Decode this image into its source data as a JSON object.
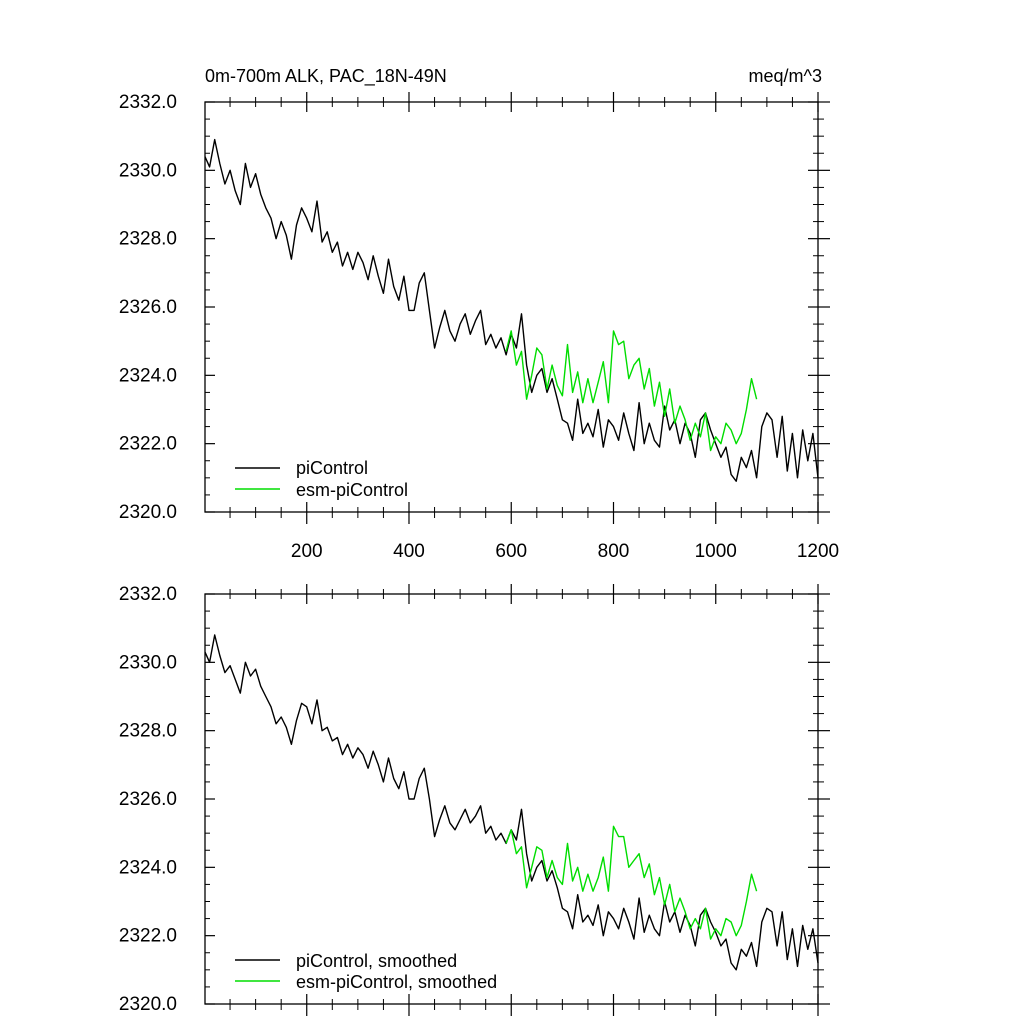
{
  "chart_data": [
    {
      "type": "line",
      "title": "0m-700m ALK, PAC_18N-49N",
      "units": "meq/m^3",
      "xlim": [
        1,
        1200
      ],
      "ylim": [
        2320.0,
        2332.0
      ],
      "x_ticks": [
        200,
        400,
        600,
        800,
        1000,
        1200
      ],
      "y_ticks": [
        "2320.0",
        "2322.0",
        "2324.0",
        "2326.0",
        "2328.0",
        "2330.0",
        "2332.0"
      ],
      "legend_position": "bottom-left",
      "series": [
        {
          "name": "piControl",
          "color": "#000000",
          "x": [
            1,
            10,
            20,
            30,
            40,
            50,
            60,
            70,
            80,
            90,
            100,
            110,
            120,
            130,
            140,
            150,
            160,
            170,
            180,
            190,
            200,
            210,
            220,
            230,
            240,
            250,
            260,
            270,
            280,
            290,
            300,
            310,
            320,
            330,
            340,
            350,
            360,
            370,
            380,
            390,
            400,
            410,
            420,
            430,
            440,
            450,
            460,
            470,
            480,
            490,
            500,
            510,
            520,
            530,
            540,
            550,
            560,
            570,
            580,
            590,
            600,
            610,
            620,
            630,
            640,
            650,
            660,
            670,
            680,
            690,
            700,
            710,
            720,
            730,
            740,
            750,
            760,
            770,
            780,
            790,
            800,
            810,
            820,
            830,
            840,
            850,
            860,
            870,
            880,
            890,
            900,
            910,
            920,
            930,
            940,
            950,
            960,
            970,
            980,
            990,
            1000,
            1010,
            1020,
            1030,
            1040,
            1050,
            1060,
            1070,
            1080,
            1090,
            1100,
            1110,
            1120,
            1130,
            1140,
            1150,
            1160,
            1170,
            1180,
            1190,
            1200
          ],
          "y": [
            2330.4,
            2330.1,
            2330.9,
            2330.2,
            2329.6,
            2330.0,
            2329.4,
            2329.0,
            2330.2,
            2329.5,
            2329.9,
            2329.3,
            2328.9,
            2328.6,
            2328.0,
            2328.5,
            2328.1,
            2327.4,
            2328.4,
            2328.9,
            2328.6,
            2328.2,
            2329.1,
            2327.9,
            2328.2,
            2327.6,
            2327.9,
            2327.2,
            2327.6,
            2327.1,
            2327.6,
            2327.3,
            2326.8,
            2327.5,
            2326.9,
            2326.4,
            2327.4,
            2326.6,
            2326.2,
            2326.9,
            2325.9,
            2325.9,
            2326.7,
            2327.0,
            2325.9,
            2324.8,
            2325.4,
            2325.9,
            2325.3,
            2325.0,
            2325.5,
            2325.8,
            2325.2,
            2325.6,
            2325.9,
            2324.9,
            2325.2,
            2324.8,
            2325.1,
            2324.6,
            2325.2,
            2324.8,
            2325.8,
            2324.3,
            2323.5,
            2324.0,
            2324.2,
            2323.5,
            2323.9,
            2323.3,
            2322.7,
            2322.6,
            2322.1,
            2323.3,
            2322.3,
            2322.6,
            2322.2,
            2323.0,
            2321.9,
            2322.7,
            2322.5,
            2322.1,
            2322.9,
            2322.3,
            2321.8,
            2323.2,
            2322.0,
            2322.6,
            2322.1,
            2321.9,
            2323.1,
            2322.4,
            2322.7,
            2322.0,
            2322.6,
            2322.3,
            2321.6,
            2322.7,
            2322.9,
            2322.4,
            2322.0,
            2321.6,
            2321.9,
            2321.1,
            2320.9,
            2321.6,
            2321.3,
            2321.8,
            2321.0,
            2322.5,
            2322.9,
            2322.7,
            2321.6,
            2322.8,
            2321.2,
            2322.3,
            2321.0,
            2322.4,
            2321.5,
            2322.3,
            2321.0
          ]
        },
        {
          "name": "esm-piControl",
          "color": "#00dd00",
          "x": [
            590,
            600,
            610,
            620,
            630,
            640,
            650,
            660,
            670,
            680,
            690,
            700,
            710,
            720,
            730,
            740,
            750,
            760,
            770,
            780,
            790,
            800,
            810,
            820,
            830,
            840,
            850,
            860,
            870,
            880,
            890,
            900,
            910,
            920,
            930,
            940,
            950,
            960,
            970,
            980,
            990,
            1000,
            1010,
            1020,
            1030,
            1040,
            1050,
            1060,
            1070,
            1080
          ],
          "y": [
            2324.7,
            2325.3,
            2324.3,
            2324.7,
            2323.3,
            2324.0,
            2324.8,
            2324.6,
            2323.6,
            2324.3,
            2323.7,
            2323.4,
            2324.9,
            2323.5,
            2324.1,
            2323.2,
            2323.9,
            2323.2,
            2323.8,
            2324.4,
            2323.2,
            2325.3,
            2324.9,
            2325.0,
            2323.9,
            2324.3,
            2324.5,
            2323.6,
            2324.2,
            2323.1,
            2323.8,
            2322.8,
            2323.6,
            2322.6,
            2323.1,
            2322.7,
            2322.1,
            2322.6,
            2322.2,
            2322.9,
            2321.8,
            2322.2,
            2322.0,
            2322.6,
            2322.4,
            2322.0,
            2322.3,
            2323.0,
            2323.9,
            2323.3
          ]
        }
      ]
    },
    {
      "type": "line",
      "title": "",
      "xlim": [
        1,
        1200
      ],
      "ylim": [
        2320.0,
        2332.0
      ],
      "y_ticks": [
        "2320.0",
        "2322.0",
        "2324.0",
        "2326.0",
        "2328.0",
        "2330.0",
        "2332.0"
      ],
      "legend_position": "bottom-left",
      "series": [
        {
          "name": "piControl, smoothed",
          "color": "#000000",
          "x": [
            1,
            10,
            20,
            30,
            40,
            50,
            60,
            70,
            80,
            90,
            100,
            110,
            120,
            130,
            140,
            150,
            160,
            170,
            180,
            190,
            200,
            210,
            220,
            230,
            240,
            250,
            260,
            270,
            280,
            290,
            300,
            310,
            320,
            330,
            340,
            350,
            360,
            370,
            380,
            390,
            400,
            410,
            420,
            430,
            440,
            450,
            460,
            470,
            480,
            490,
            500,
            510,
            520,
            530,
            540,
            550,
            560,
            570,
            580,
            590,
            600,
            610,
            620,
            630,
            640,
            650,
            660,
            670,
            680,
            690,
            700,
            710,
            720,
            730,
            740,
            750,
            760,
            770,
            780,
            790,
            800,
            810,
            820,
            830,
            840,
            850,
            860,
            870,
            880,
            890,
            900,
            910,
            920,
            930,
            940,
            950,
            960,
            970,
            980,
            990,
            1000,
            1010,
            1020,
            1030,
            1040,
            1050,
            1060,
            1070,
            1080,
            1090,
            1100,
            1110,
            1120,
            1130,
            1140,
            1150,
            1160,
            1170,
            1180,
            1190,
            1200
          ],
          "y": [
            2330.3,
            2330.0,
            2330.8,
            2330.2,
            2329.7,
            2329.9,
            2329.5,
            2329.1,
            2330.0,
            2329.6,
            2329.8,
            2329.3,
            2329.0,
            2328.7,
            2328.2,
            2328.4,
            2328.1,
            2327.6,
            2328.3,
            2328.8,
            2328.7,
            2328.2,
            2328.9,
            2328.0,
            2328.1,
            2327.7,
            2327.8,
            2327.3,
            2327.6,
            2327.2,
            2327.5,
            2327.3,
            2326.9,
            2327.4,
            2327.0,
            2326.5,
            2327.2,
            2326.6,
            2326.3,
            2326.8,
            2326.0,
            2326.0,
            2326.6,
            2326.9,
            2326.0,
            2324.9,
            2325.4,
            2325.8,
            2325.3,
            2325.1,
            2325.4,
            2325.7,
            2325.3,
            2325.5,
            2325.8,
            2325.0,
            2325.2,
            2324.8,
            2325.0,
            2324.7,
            2325.1,
            2324.8,
            2325.7,
            2324.4,
            2323.6,
            2324.0,
            2324.2,
            2323.6,
            2323.9,
            2323.4,
            2322.8,
            2322.7,
            2322.2,
            2323.2,
            2322.4,
            2322.6,
            2322.3,
            2322.9,
            2322.0,
            2322.7,
            2322.5,
            2322.2,
            2322.8,
            2322.4,
            2321.9,
            2323.1,
            2322.1,
            2322.6,
            2322.2,
            2322.0,
            2323.0,
            2322.4,
            2322.7,
            2322.1,
            2322.6,
            2322.3,
            2321.7,
            2322.6,
            2322.8,
            2322.4,
            2322.1,
            2321.7,
            2321.9,
            2321.2,
            2321.0,
            2321.6,
            2321.4,
            2321.8,
            2321.1,
            2322.4,
            2322.8,
            2322.7,
            2321.7,
            2322.7,
            2321.3,
            2322.2,
            2321.1,
            2322.3,
            2321.6,
            2322.2,
            2321.2
          ]
        },
        {
          "name": "esm-piControl, smoothed",
          "color": "#00dd00",
          "x": [
            590,
            600,
            610,
            620,
            630,
            640,
            650,
            660,
            670,
            680,
            690,
            700,
            710,
            720,
            730,
            740,
            750,
            760,
            770,
            780,
            790,
            800,
            810,
            820,
            830,
            840,
            850,
            860,
            870,
            880,
            890,
            900,
            910,
            920,
            930,
            940,
            950,
            960,
            970,
            980,
            990,
            1000,
            1010,
            1020,
            1030,
            1040,
            1050,
            1060,
            1070,
            1080
          ],
          "y": [
            2324.7,
            2325.1,
            2324.4,
            2324.6,
            2323.4,
            2324.0,
            2324.6,
            2324.5,
            2323.7,
            2324.2,
            2323.7,
            2323.5,
            2324.7,
            2323.6,
            2324.0,
            2323.3,
            2323.8,
            2323.3,
            2323.7,
            2324.3,
            2323.3,
            2325.2,
            2324.9,
            2324.9,
            2324.0,
            2324.2,
            2324.4,
            2323.7,
            2324.1,
            2323.2,
            2323.7,
            2322.9,
            2323.5,
            2322.7,
            2323.1,
            2322.7,
            2322.2,
            2322.5,
            2322.2,
            2322.8,
            2321.9,
            2322.2,
            2322.0,
            2322.5,
            2322.4,
            2322.0,
            2322.3,
            2323.0,
            2323.8,
            2323.3
          ]
        }
      ]
    }
  ]
}
